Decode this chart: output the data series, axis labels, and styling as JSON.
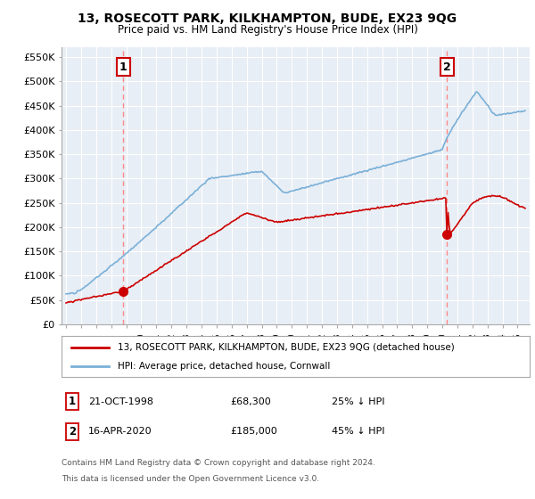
{
  "title": "13, ROSECOTT PARK, KILKHAMPTON, BUDE, EX23 9QG",
  "subtitle": "Price paid vs. HM Land Registry's House Price Index (HPI)",
  "yticks": [
    0,
    50000,
    100000,
    150000,
    200000,
    250000,
    300000,
    350000,
    400000,
    450000,
    500000,
    550000
  ],
  "ytick_labels": [
    "£0",
    "£50K",
    "£100K",
    "£150K",
    "£200K",
    "£250K",
    "£300K",
    "£350K",
    "£400K",
    "£450K",
    "£500K",
    "£550K"
  ],
  "legend_line1": "13, ROSECOTT PARK, KILKHAMPTON, BUDE, EX23 9QG (detached house)",
  "legend_line2": "HPI: Average price, detached house, Cornwall",
  "annotation1_label": "1",
  "annotation1_date": "21-OCT-1998",
  "annotation1_price": "£68,300",
  "annotation1_pct": "25% ↓ HPI",
  "annotation2_label": "2",
  "annotation2_date": "16-APR-2020",
  "annotation2_price": "£185,000",
  "annotation2_pct": "45% ↓ HPI",
  "footnote1": "Contains HM Land Registry data © Crown copyright and database right 2024.",
  "footnote2": "This data is licensed under the Open Government Licence v3.0.",
  "hpi_color": "#7ab0d8",
  "price_color": "#cc0000",
  "vline_color": "#ff8888",
  "background_color": "#ffffff",
  "plot_bg_color": "#e8eef5",
  "grid_color": "#ffffff",
  "sale1_x": 1998.8,
  "sale1_y": 68300,
  "sale2_x": 2020.3,
  "sale2_y": 185000,
  "xlim_left": 1994.7,
  "xlim_right": 2025.8,
  "ylim_top": 570000
}
